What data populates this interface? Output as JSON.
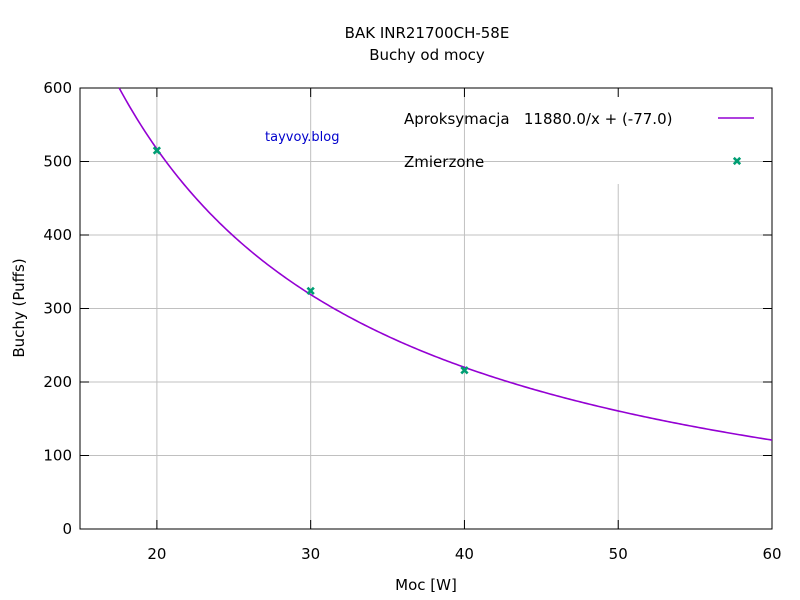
{
  "chart_data": {
    "type": "scatter",
    "title": "BAK INR21700CH-58E",
    "subtitle": "Buchy od mocy",
    "xlabel": "Moc [W]",
    "ylabel": "Buchy (Puffs)",
    "xlim": [
      15,
      60
    ],
    "ylim": [
      0,
      600
    ],
    "xticks": [
      20,
      30,
      40,
      50,
      60
    ],
    "yticks": [
      0,
      100,
      200,
      300,
      400,
      500,
      600
    ],
    "grid": true,
    "legend_position": "top-right",
    "watermark": "tayvoy.blog",
    "series": [
      {
        "name": "Aproksymacja   11880.0/x + (-77.0)",
        "kind": "line",
        "function": {
          "a": 11880.0,
          "b": -77.0
        },
        "color": "#9400d3"
      },
      {
        "name": "Zmierzone",
        "kind": "points",
        "x": [
          20,
          30,
          40
        ],
        "y": [
          515,
          324,
          216
        ],
        "color": "#009e73"
      }
    ]
  }
}
